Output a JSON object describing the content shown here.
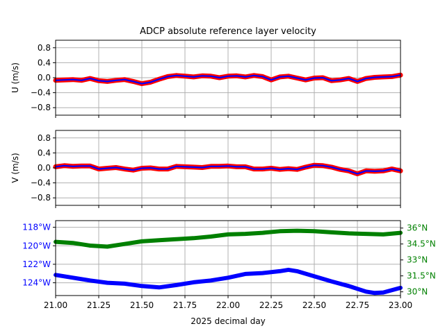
{
  "chart_data": [
    {
      "type": "line",
      "title": "ADCP absolute reference layer velocity",
      "ylabel": "U (m/s)",
      "xlim": [
        21.0,
        23.0
      ],
      "ylim": [
        -1.0,
        1.0
      ],
      "yticks": [
        0.8,
        0.4,
        0.0,
        -0.4,
        -0.8
      ],
      "ytick_labels": [
        "0.8",
        "0.4",
        "0.0",
        "−0.4",
        "−0.8"
      ],
      "grid": true,
      "series": [
        {
          "style": "thick red band with blue line on top",
          "color_outer": "#ff0000",
          "color_inner": "#0000ff",
          "x": [
            21.0,
            21.05,
            21.1,
            21.15,
            21.2,
            21.25,
            21.3,
            21.35,
            21.4,
            21.45,
            21.5,
            21.55,
            21.6,
            21.65,
            21.7,
            21.75,
            21.8,
            21.85,
            21.9,
            21.95,
            22.0,
            22.05,
            22.1,
            22.15,
            22.2,
            22.25,
            22.3,
            22.35,
            22.4,
            22.45,
            22.5,
            22.55,
            22.6,
            22.65,
            22.7,
            22.75,
            22.8,
            22.85,
            22.9,
            22.95,
            23.0
          ],
          "y": [
            -0.07,
            -0.06,
            -0.05,
            -0.07,
            -0.02,
            -0.08,
            -0.1,
            -0.07,
            -0.05,
            -0.1,
            -0.16,
            -0.12,
            -0.04,
            0.03,
            0.06,
            0.04,
            0.02,
            0.05,
            0.04,
            0.0,
            0.04,
            0.05,
            0.02,
            0.06,
            0.03,
            -0.06,
            0.02,
            0.04,
            -0.01,
            -0.06,
            -0.01,
            0.0,
            -0.08,
            -0.06,
            -0.02,
            -0.1,
            -0.02,
            0.01,
            0.02,
            0.03,
            0.07
          ]
        }
      ]
    },
    {
      "type": "line",
      "ylabel": "V (m/s)",
      "xlim": [
        21.0,
        23.0
      ],
      "ylim": [
        -1.0,
        1.0
      ],
      "yticks": [
        0.8,
        0.4,
        0.0,
        -0.4,
        -0.8
      ],
      "ytick_labels": [
        "0.8",
        "0.4",
        "0.0",
        "−0.4",
        "−0.8"
      ],
      "grid": true,
      "series": [
        {
          "style": "thick red band with blue line on top",
          "color_outer": "#ff0000",
          "color_inner": "#0000ff",
          "x": [
            21.0,
            21.05,
            21.1,
            21.15,
            21.2,
            21.25,
            21.3,
            21.35,
            21.4,
            21.45,
            21.5,
            21.55,
            21.6,
            21.65,
            21.7,
            21.75,
            21.8,
            21.85,
            21.9,
            21.95,
            22.0,
            22.05,
            22.1,
            22.15,
            22.2,
            22.25,
            22.3,
            22.35,
            22.4,
            22.45,
            22.5,
            22.55,
            22.6,
            22.65,
            22.7,
            22.75,
            22.8,
            22.85,
            22.9,
            22.95,
            23.0
          ],
          "y": [
            0.03,
            0.06,
            0.04,
            0.05,
            0.05,
            -0.03,
            -0.01,
            0.01,
            -0.03,
            -0.06,
            -0.01,
            0.0,
            -0.03,
            -0.03,
            0.04,
            0.03,
            0.02,
            0.01,
            0.04,
            0.04,
            0.05,
            0.03,
            0.03,
            -0.03,
            -0.03,
            -0.01,
            -0.04,
            -0.02,
            -0.04,
            0.02,
            0.07,
            0.06,
            0.02,
            -0.04,
            -0.08,
            -0.16,
            -0.08,
            -0.09,
            -0.08,
            -0.03,
            -0.08
          ]
        }
      ]
    },
    {
      "type": "line",
      "xlabel": "2025 decimal day",
      "xlim": [
        21.0,
        23.0
      ],
      "xticks": [
        21.0,
        21.25,
        21.5,
        21.75,
        22.0,
        22.25,
        22.5,
        22.75,
        23.0
      ],
      "xtick_labels": [
        "21.00",
        "21.25",
        "21.50",
        "21.75",
        "22.00",
        "22.25",
        "22.50",
        "22.75",
        "23.00"
      ],
      "grid": true,
      "left_axis": {
        "quantity": "longitude (degrees east)",
        "color": "#0000ff",
        "ylim": [
          -125.38,
          -117.28
        ],
        "yticks": [
          -118,
          -120,
          -122,
          -124
        ],
        "ytick_labels": [
          "118°W",
          "120°W",
          "122°W",
          "124°W"
        ]
      },
      "right_axis": {
        "quantity": "latitude (degrees north)",
        "color": "#008000",
        "ylim": [
          29.65,
          36.7
        ],
        "yticks": [
          36,
          34.5,
          33,
          31.5,
          30
        ],
        "ytick_labels": [
          "36°N",
          "34.5°N",
          "33°N",
          "31.5°N",
          "30°N"
        ]
      },
      "series": [
        {
          "axis": "left",
          "color": "#0000ff",
          "x": [
            21.0,
            21.1,
            21.2,
            21.3,
            21.4,
            21.5,
            21.6,
            21.7,
            21.8,
            21.9,
            22.0,
            22.1,
            22.2,
            22.3,
            22.35,
            22.4,
            22.5,
            22.6,
            22.7,
            22.8,
            22.85,
            22.9,
            23.0
          ],
          "y": [
            -123.15,
            -123.45,
            -123.75,
            -124.0,
            -124.1,
            -124.35,
            -124.5,
            -124.25,
            -123.95,
            -123.75,
            -123.45,
            -123.05,
            -122.95,
            -122.75,
            -122.6,
            -122.75,
            -123.3,
            -123.85,
            -124.35,
            -124.95,
            -125.1,
            -125.05,
            -124.55
          ]
        },
        {
          "axis": "right",
          "color": "#008000",
          "x": [
            21.0,
            21.1,
            21.2,
            21.3,
            21.4,
            21.5,
            21.6,
            21.7,
            21.8,
            21.9,
            22.0,
            22.1,
            22.2,
            22.3,
            22.4,
            22.5,
            22.6,
            22.7,
            22.8,
            22.9,
            23.0
          ],
          "y": [
            34.7,
            34.6,
            34.35,
            34.25,
            34.5,
            34.75,
            34.85,
            34.95,
            35.05,
            35.2,
            35.4,
            35.45,
            35.55,
            35.7,
            35.75,
            35.7,
            35.6,
            35.5,
            35.45,
            35.4,
            35.55
          ]
        }
      ]
    }
  ]
}
